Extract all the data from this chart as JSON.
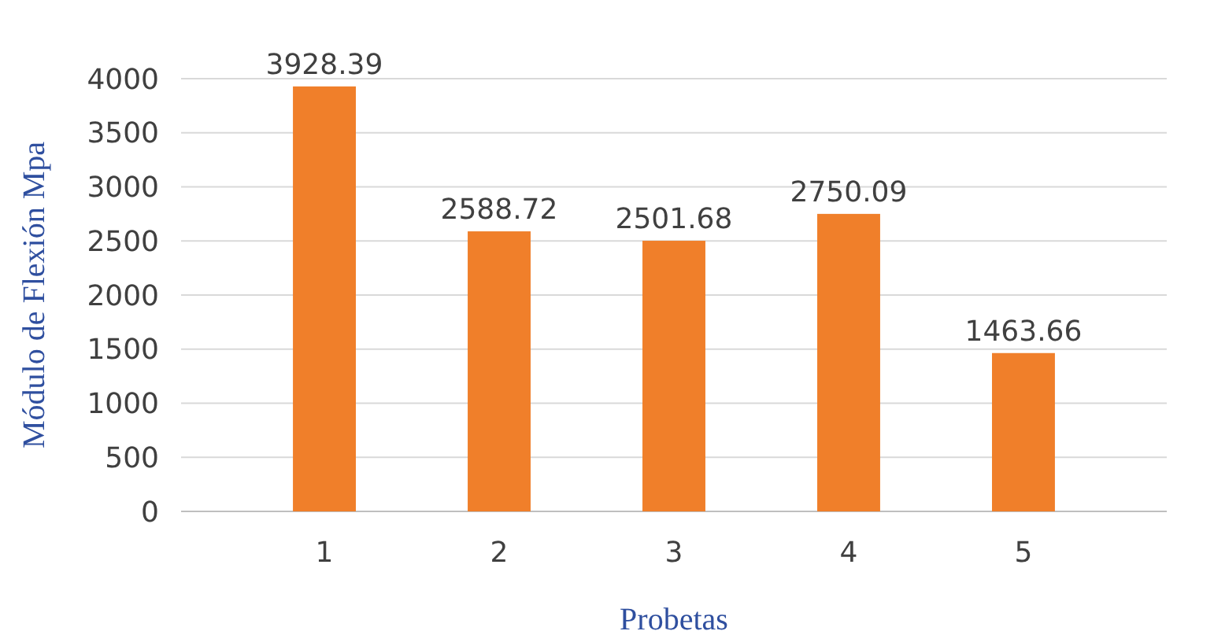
{
  "chart_data": {
    "type": "bar",
    "categories": [
      "1",
      "2",
      "3",
      "4",
      "5"
    ],
    "values": [
      3928.39,
      2588.72,
      2501.68,
      2750.09,
      1463.66
    ],
    "color": "#f07f2a",
    "data_labels": true,
    "xlabel": "Probetas",
    "ylabel": "Módulo de Flexión Mpa",
    "ylim": [
      0,
      4000
    ],
    "yticks": [
      0,
      500,
      1000,
      1500,
      2000,
      2500,
      3000,
      3500,
      4000
    ],
    "grid": "y"
  }
}
